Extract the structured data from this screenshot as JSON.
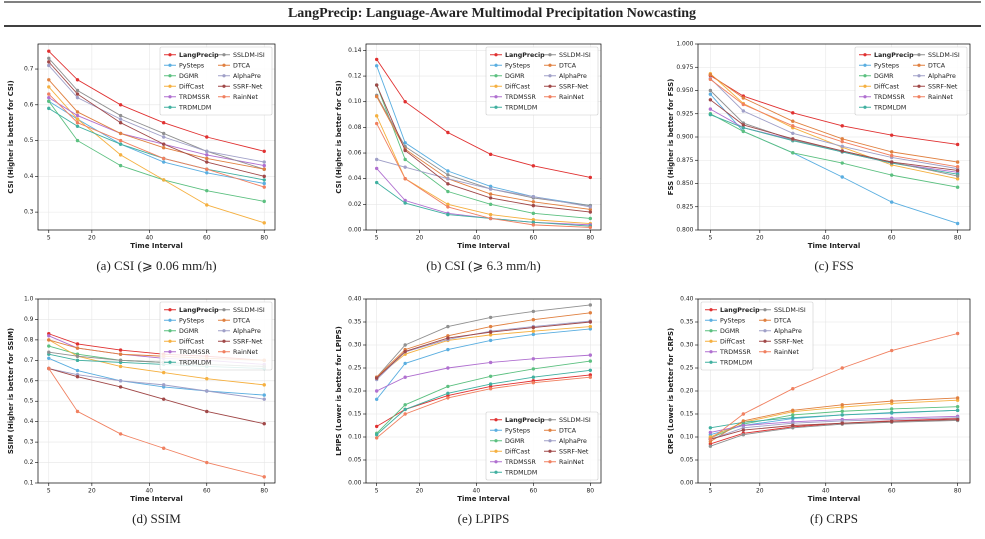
{
  "header": {
    "title": "LangPrecip: Language-Aware Multimodal Precipitation Nowcasting"
  },
  "chart_data": [
    {
      "type": "line",
      "caption": "(a) CSI (⩾ 0.06 mm/h)",
      "xlabel": "Time Interval",
      "ylabel": "CSI (Higher is better for CSI)",
      "x": [
        5,
        15,
        30,
        45,
        60,
        80
      ],
      "xlim": [
        1.25,
        83.75
      ],
      "xticks": [
        5,
        20,
        40,
        60,
        80
      ],
      "ylim": [
        0.25,
        0.77
      ],
      "yticks": [
        0.3,
        0.4,
        0.5,
        0.6,
        0.7
      ],
      "grid": true,
      "legend": "upper right",
      "series": [
        {
          "name": "LangPrecip",
          "color": "#e03131",
          "values": [
            0.75,
            0.67,
            0.6,
            0.55,
            0.51,
            0.47
          ]
        },
        {
          "name": "PySteps",
          "color": "#5aaee0",
          "values": [
            0.61,
            0.56,
            0.49,
            0.44,
            0.41,
            0.38
          ]
        },
        {
          "name": "DGMR",
          "color": "#5cc080",
          "values": [
            0.61,
            0.5,
            0.43,
            0.39,
            0.36,
            0.33
          ]
        },
        {
          "name": "DiffCast",
          "color": "#f5b040",
          "values": [
            0.65,
            0.56,
            0.46,
            0.39,
            0.32,
            0.27
          ]
        },
        {
          "name": "TRDMSSR",
          "color": "#b070d0",
          "values": [
            0.62,
            0.57,
            0.52,
            0.49,
            0.46,
            0.43
          ]
        },
        {
          "name": "TRDMLDM",
          "color": "#40b0a0",
          "values": [
            0.59,
            0.54,
            0.49,
            0.45,
            0.42,
            0.39
          ]
        },
        {
          "name": "SSLDM-ISI",
          "color": "#909090",
          "values": [
            0.73,
            0.64,
            0.57,
            0.52,
            0.47,
            0.42
          ]
        },
        {
          "name": "DTCA",
          "color": "#e08040",
          "values": [
            0.67,
            0.58,
            0.52,
            0.48,
            0.45,
            0.42
          ]
        },
        {
          "name": "AlphaPre",
          "color": "#a0a0c8",
          "values": [
            0.71,
            0.62,
            0.56,
            0.51,
            0.47,
            0.44
          ]
        },
        {
          "name": "SSRF-Net",
          "color": "#a04848",
          "values": [
            0.72,
            0.63,
            0.55,
            0.49,
            0.44,
            0.4
          ]
        },
        {
          "name": "RainNet",
          "color": "#f08060",
          "values": [
            0.63,
            0.55,
            0.5,
            0.45,
            0.42,
            0.37
          ]
        }
      ]
    },
    {
      "type": "line",
      "caption": "(b) CSI (⩾ 6.3 mm/h)",
      "xlabel": "Time Interval",
      "ylabel": "CSI (Higher is better for CSI)",
      "x": [
        5,
        15,
        30,
        45,
        60,
        80
      ],
      "xlim": [
        1.25,
        83.75
      ],
      "xticks": [
        5,
        20,
        40,
        60,
        80
      ],
      "ylim": [
        0,
        0.145
      ],
      "yticks": [
        {
          "value": 0,
          "label": "0.00"
        },
        0.02,
        0.04,
        0.06,
        0.08,
        {
          "value": 0.1,
          "label": "0.10"
        },
        0.12,
        0.14
      ],
      "grid": true,
      "legend": "upper right",
      "series": [
        {
          "name": "LangPrecip",
          "color": "#e03131",
          "values": [
            0.133,
            0.1,
            0.076,
            0.059,
            0.05,
            0.041
          ]
        },
        {
          "name": "PySteps",
          "color": "#5aaee0",
          "values": [
            0.128,
            0.068,
            0.046,
            0.034,
            0.026,
            0.019
          ]
        },
        {
          "name": "DGMR",
          "color": "#5cc080",
          "values": [
            0.113,
            0.055,
            0.03,
            0.02,
            0.013,
            0.009
          ]
        },
        {
          "name": "DiffCast",
          "color": "#f5b040",
          "values": [
            0.089,
            0.04,
            0.02,
            0.012,
            0.008,
            0.005
          ]
        },
        {
          "name": "TRDMSSR",
          "color": "#b070d0",
          "values": [
            0.048,
            0.023,
            0.013,
            0.009,
            0.006,
            0.004
          ]
        },
        {
          "name": "TRDMLDM",
          "color": "#40b0a0",
          "values": [
            0.037,
            0.021,
            0.012,
            0.009,
            0.006,
            0.003
          ]
        },
        {
          "name": "SSLDM-ISI",
          "color": "#909090",
          "values": [
            0.105,
            0.065,
            0.043,
            0.032,
            0.025,
            0.019
          ]
        },
        {
          "name": "DTCA",
          "color": "#e08040",
          "values": [
            0.104,
            0.063,
            0.04,
            0.028,
            0.022,
            0.016
          ]
        },
        {
          "name": "AlphaPre",
          "color": "#a0a0c8",
          "values": [
            0.055,
            0.049,
            0.04,
            0.032,
            0.026,
            0.018
          ]
        },
        {
          "name": "SSRF-Net",
          "color": "#a04848",
          "values": [
            0.113,
            0.062,
            0.036,
            0.025,
            0.019,
            0.014
          ]
        },
        {
          "name": "RainNet",
          "color": "#f08060",
          "values": [
            0.083,
            0.04,
            0.018,
            0.009,
            0.004,
            0.002
          ]
        }
      ]
    },
    {
      "type": "line",
      "caption": "(c) FSS",
      "xlabel": "Time Interval",
      "ylabel": "FSS (Higher is better for FSS)",
      "x": [
        5,
        15,
        30,
        45,
        60,
        80
      ],
      "xlim": [
        1.25,
        83.75
      ],
      "xticks": [
        5,
        20,
        40,
        60,
        80
      ],
      "ylim": [
        0.8,
        1.0
      ],
      "yticks": [
        {
          "value": 0.8,
          "label": "0.800"
        },
        0.825,
        {
          "value": 0.85,
          "label": "0.850"
        },
        0.875,
        {
          "value": 0.9,
          "label": "0.900"
        },
        0.925,
        {
          "value": 0.95,
          "label": "0.950"
        },
        0.975,
        {
          "value": 1.0,
          "label": "1.000"
        }
      ],
      "grid": true,
      "legend": "upper right",
      "series": [
        {
          "name": "LangPrecip",
          "color": "#e03131",
          "values": [
            0.966,
            0.944,
            0.926,
            0.912,
            0.902,
            0.892
          ]
        },
        {
          "name": "PySteps",
          "color": "#5aaee0",
          "values": [
            0.946,
            0.906,
            0.883,
            0.857,
            0.83,
            0.807
          ]
        },
        {
          "name": "DGMR",
          "color": "#5cc080",
          "values": [
            0.925,
            0.906,
            0.883,
            0.872,
            0.859,
            0.846
          ]
        },
        {
          "name": "DiffCast",
          "color": "#f5b040",
          "values": [
            0.968,
            0.936,
            0.91,
            0.889,
            0.87,
            0.855
          ]
        },
        {
          "name": "TRDMSSR",
          "color": "#b070d0",
          "values": [
            0.93,
            0.91,
            0.897,
            0.884,
            0.872,
            0.862
          ]
        },
        {
          "name": "TRDMLDM",
          "color": "#40b0a0",
          "values": [
            0.924,
            0.91,
            0.896,
            0.884,
            0.872,
            0.86
          ]
        },
        {
          "name": "SSLDM-ISI",
          "color": "#909090",
          "values": [
            0.95,
            0.915,
            0.897,
            0.885,
            0.873,
            0.858
          ]
        },
        {
          "name": "DTCA",
          "color": "#e08040",
          "values": [
            0.967,
            0.942,
            0.917,
            0.898,
            0.884,
            0.873
          ]
        },
        {
          "name": "AlphaPre",
          "color": "#a0a0c8",
          "values": [
            0.963,
            0.928,
            0.904,
            0.89,
            0.878,
            0.866
          ]
        },
        {
          "name": "SSRF-Net",
          "color": "#a04848",
          "values": [
            0.94,
            0.913,
            0.898,
            0.885,
            0.873,
            0.864
          ]
        },
        {
          "name": "RainNet",
          "color": "#f08060",
          "values": [
            0.962,
            0.935,
            0.912,
            0.895,
            0.88,
            0.868
          ]
        }
      ]
    },
    {
      "type": "line",
      "caption": "(d) SSIM",
      "xlabel": "Time Interval",
      "ylabel": "SSIM (Higher is better for SSIM)",
      "x": [
        5,
        15,
        30,
        45,
        60,
        80
      ],
      "xlim": [
        1.25,
        83.75
      ],
      "xticks": [
        5,
        20,
        40,
        60,
        80
      ],
      "ylim": [
        0.1,
        1.0
      ],
      "yticks": [
        0.1,
        0.2,
        0.3,
        0.4,
        0.5,
        0.6,
        0.7,
        0.8,
        0.9,
        {
          "value": 1.0,
          "label": "1.0"
        }
      ],
      "grid": true,
      "legend": "upper right",
      "series": [
        {
          "name": "LangPrecip",
          "color": "#e03131",
          "values": [
            0.83,
            0.78,
            0.75,
            0.73,
            0.72,
            0.7
          ]
        },
        {
          "name": "PySteps",
          "color": "#5aaee0",
          "values": [
            0.71,
            0.65,
            0.6,
            0.57,
            0.55,
            0.53
          ]
        },
        {
          "name": "DGMR",
          "color": "#5cc080",
          "values": [
            0.77,
            0.73,
            0.7,
            0.69,
            0.68,
            0.67
          ]
        },
        {
          "name": "DiffCast",
          "color": "#f5b040",
          "values": [
            0.8,
            0.72,
            0.67,
            0.64,
            0.61,
            0.58
          ]
        },
        {
          "name": "TRDMSSR",
          "color": "#b070d0",
          "values": [
            0.82,
            0.76,
            0.73,
            0.71,
            0.7,
            0.68
          ]
        },
        {
          "name": "TRDMLDM",
          "color": "#40b0a0",
          "values": [
            0.73,
            0.7,
            0.69,
            0.68,
            0.67,
            0.66
          ]
        },
        {
          "name": "SSLDM-ISI",
          "color": "#909090",
          "values": [
            0.74,
            0.72,
            0.7,
            0.69,
            0.68,
            0.67
          ]
        },
        {
          "name": "DTCA",
          "color": "#e08040",
          "values": [
            0.8,
            0.76,
            0.73,
            0.72,
            0.71,
            0.7
          ]
        },
        {
          "name": "AlphaPre",
          "color": "#a0a0c8",
          "values": [
            0.66,
            0.63,
            0.6,
            0.58,
            0.55,
            0.51
          ]
        },
        {
          "name": "SSRF-Net",
          "color": "#a04848",
          "values": [
            0.66,
            0.62,
            0.57,
            0.51,
            0.45,
            0.39
          ]
        },
        {
          "name": "RainNet",
          "color": "#f08060",
          "values": [
            0.66,
            0.45,
            0.34,
            0.27,
            0.2,
            0.13
          ]
        }
      ]
    },
    {
      "type": "line",
      "caption": "(e) LPIPS",
      "xlabel": "Time Interval",
      "ylabel": "LPIPS (Lower is better for LPIPS)",
      "x": [
        5,
        15,
        30,
        45,
        60,
        80
      ],
      "xlim": [
        1.25,
        83.75
      ],
      "xticks": [
        5,
        20,
        40,
        60,
        80
      ],
      "ylim": [
        0,
        0.4
      ],
      "yticks": [
        {
          "value": 0,
          "label": "0.00"
        },
        0.05,
        {
          "value": 0.1,
          "label": "0.10"
        },
        0.15,
        {
          "value": 0.2,
          "label": "0.20"
        },
        0.25,
        {
          "value": 0.3,
          "label": "0.30"
        },
        0.35,
        {
          "value": 0.4,
          "label": "0.40"
        }
      ],
      "grid": true,
      "legend": "lower right",
      "series": [
        {
          "name": "LangPrecip",
          "color": "#e03131",
          "values": [
            0.123,
            0.16,
            0.19,
            0.21,
            0.222,
            0.235
          ]
        },
        {
          "name": "PySteps",
          "color": "#5aaee0",
          "values": [
            0.182,
            0.26,
            0.29,
            0.31,
            0.323,
            0.335
          ]
        },
        {
          "name": "DGMR",
          "color": "#5cc080",
          "values": [
            0.108,
            0.17,
            0.21,
            0.232,
            0.248,
            0.265
          ]
        },
        {
          "name": "DiffCast",
          "color": "#f5b040",
          "values": [
            0.23,
            0.28,
            0.31,
            0.322,
            0.33,
            0.34
          ]
        },
        {
          "name": "TRDMSSR",
          "color": "#b070d0",
          "values": [
            0.2,
            0.23,
            0.25,
            0.262,
            0.27,
            0.278
          ]
        },
        {
          "name": "TRDMLDM",
          "color": "#40b0a0",
          "values": [
            0.105,
            0.16,
            0.195,
            0.215,
            0.23,
            0.245
          ]
        },
        {
          "name": "SSLDM-ISI",
          "color": "#909090",
          "values": [
            0.23,
            0.3,
            0.34,
            0.36,
            0.373,
            0.387
          ]
        },
        {
          "name": "DTCA",
          "color": "#e08040",
          "values": [
            0.23,
            0.29,
            0.32,
            0.34,
            0.355,
            0.37
          ]
        },
        {
          "name": "AlphaPre",
          "color": "#a0a0c8",
          "values": [
            0.225,
            0.285,
            0.312,
            0.33,
            0.34,
            0.352
          ]
        },
        {
          "name": "SSRF-Net",
          "color": "#a04848",
          "values": [
            0.228,
            0.286,
            0.315,
            0.328,
            0.338,
            0.35
          ]
        },
        {
          "name": "RainNet",
          "color": "#f08060",
          "values": [
            0.098,
            0.15,
            0.185,
            0.205,
            0.218,
            0.23
          ]
        }
      ]
    },
    {
      "type": "line",
      "caption": "(f) CRPS",
      "xlabel": "Time Interval",
      "ylabel": "CRPS (Lower is better for CRPS)",
      "x": [
        5,
        15,
        30,
        45,
        60,
        80
      ],
      "xlim": [
        1.25,
        83.75
      ],
      "xticks": [
        5,
        20,
        40,
        60,
        80
      ],
      "ylim": [
        0,
        0.4
      ],
      "yticks": [
        {
          "value": 0,
          "label": "0.00"
        },
        0.05,
        {
          "value": 0.1,
          "label": "0.10"
        },
        0.15,
        {
          "value": 0.2,
          "label": "0.20"
        },
        0.25,
        {
          "value": 0.3,
          "label": "0.30"
        },
        0.35,
        {
          "value": 0.4,
          "label": "0.40"
        }
      ],
      "grid": true,
      "legend": "upper left",
      "series": [
        {
          "name": "LangPrecip",
          "color": "#e03131",
          "values": [
            0.085,
            0.108,
            0.122,
            0.13,
            0.135,
            0.14
          ]
        },
        {
          "name": "PySteps",
          "color": "#5aaee0",
          "values": [
            0.105,
            0.125,
            0.14,
            0.148,
            0.152,
            0.158
          ]
        },
        {
          "name": "DGMR",
          "color": "#5cc080",
          "values": [
            0.098,
            0.128,
            0.148,
            0.156,
            0.161,
            0.166
          ]
        },
        {
          "name": "DiffCast",
          "color": "#f5b040",
          "values": [
            0.1,
            0.132,
            0.155,
            0.165,
            0.173,
            0.18
          ]
        },
        {
          "name": "TRDMSSR",
          "color": "#b070d0",
          "values": [
            0.11,
            0.125,
            0.133,
            0.138,
            0.141,
            0.145
          ]
        },
        {
          "name": "TRDMLDM",
          "color": "#40b0a0",
          "values": [
            0.12,
            0.132,
            0.142,
            0.148,
            0.153,
            0.158
          ]
        },
        {
          "name": "SSLDM-ISI",
          "color": "#909090",
          "values": [
            0.08,
            0.105,
            0.12,
            0.128,
            0.132,
            0.136
          ]
        },
        {
          "name": "DTCA",
          "color": "#e08040",
          "values": [
            0.09,
            0.135,
            0.158,
            0.17,
            0.178,
            0.185
          ]
        },
        {
          "name": "AlphaPre",
          "color": "#a0a0c8",
          "values": [
            0.095,
            0.12,
            0.13,
            0.135,
            0.138,
            0.142
          ]
        },
        {
          "name": "SSRF-Net",
          "color": "#a04848",
          "values": [
            0.095,
            0.115,
            0.125,
            0.13,
            0.134,
            0.138
          ]
        },
        {
          "name": "RainNet",
          "color": "#f08060",
          "values": [
            0.095,
            0.15,
            0.205,
            0.25,
            0.288,
            0.325
          ]
        }
      ]
    }
  ]
}
